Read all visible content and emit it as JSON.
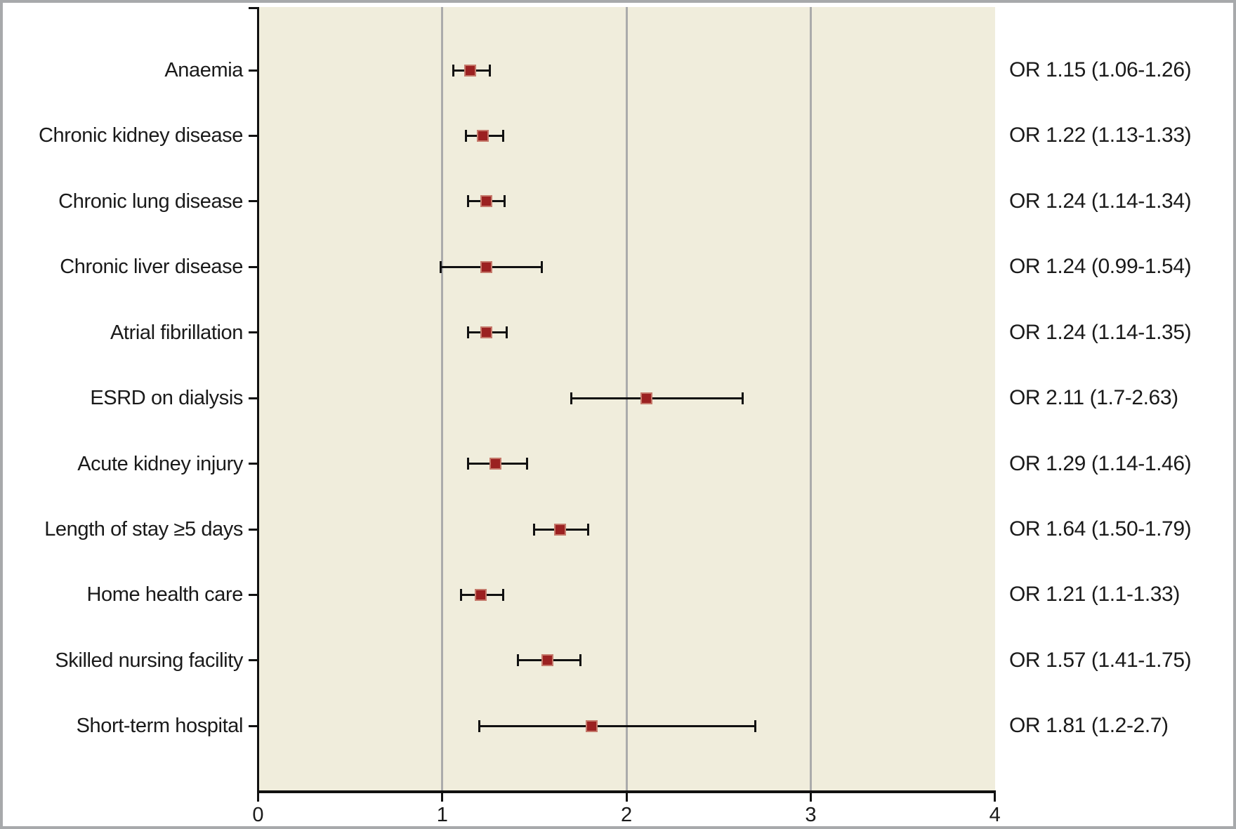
{
  "figure": {
    "background_color": "#ffffff",
    "frame_color": "#a7a9ab"
  },
  "chart_data": {
    "type": "scatter",
    "subtype": "forest-plot",
    "title": "",
    "xlabel": "",
    "ylabel": "",
    "xlim": [
      0,
      4
    ],
    "x_tick_values": [
      0,
      1,
      2,
      3,
      4
    ],
    "x_tick_labels": [
      "0",
      "1",
      "2",
      "3",
      "4"
    ],
    "gridline_values": [
      1,
      2,
      3
    ],
    "grid_on": true,
    "legend": "none",
    "plot_bg_color": "#f0eddc",
    "grid_color": "#ababab",
    "errorbar_color": "#111111",
    "marker_color": "#9b2121",
    "marker_border_color": "#c5796b",
    "rows": [
      {
        "label": "Anaemia",
        "or": 1.15,
        "ci_low": 1.06,
        "ci_high": 1.26,
        "annotation": "OR 1.15 (1.06-1.26)"
      },
      {
        "label": "Chronic kidney disease",
        "or": 1.22,
        "ci_low": 1.13,
        "ci_high": 1.33,
        "annotation": "OR 1.22 (1.13-1.33)"
      },
      {
        "label": "Chronic lung disease",
        "or": 1.24,
        "ci_low": 1.14,
        "ci_high": 1.34,
        "annotation": "OR 1.24 (1.14-1.34)"
      },
      {
        "label": "Chronic liver disease",
        "or": 1.24,
        "ci_low": 0.99,
        "ci_high": 1.54,
        "annotation": "OR 1.24 (0.99-1.54)"
      },
      {
        "label": "Atrial fibrillation",
        "or": 1.24,
        "ci_low": 1.14,
        "ci_high": 1.35,
        "annotation": "OR 1.24 (1.14-1.35)"
      },
      {
        "label": "ESRD on dialysis",
        "or": 2.11,
        "ci_low": 1.7,
        "ci_high": 2.63,
        "annotation": "OR 2.11 (1.7-2.63)"
      },
      {
        "label": "Acute kidney injury",
        "or": 1.29,
        "ci_low": 1.14,
        "ci_high": 1.46,
        "annotation": "OR 1.29 (1.14-1.46)"
      },
      {
        "label": "Length of stay ≥5 days",
        "or": 1.64,
        "ci_low": 1.5,
        "ci_high": 1.79,
        "annotation": "OR 1.64 (1.50-1.79)"
      },
      {
        "label": "Home health care",
        "or": 1.21,
        "ci_low": 1.1,
        "ci_high": 1.33,
        "annotation": "OR 1.21 (1.1-1.33)"
      },
      {
        "label": "Skilled nursing facility",
        "or": 1.57,
        "ci_low": 1.41,
        "ci_high": 1.75,
        "annotation": "OR 1.57 (1.41-1.75)"
      },
      {
        "label": "Short-term hospital",
        "or": 1.81,
        "ci_low": 1.2,
        "ci_high": 2.7,
        "annotation": "OR 1.81 (1.2-2.7)"
      }
    ]
  }
}
